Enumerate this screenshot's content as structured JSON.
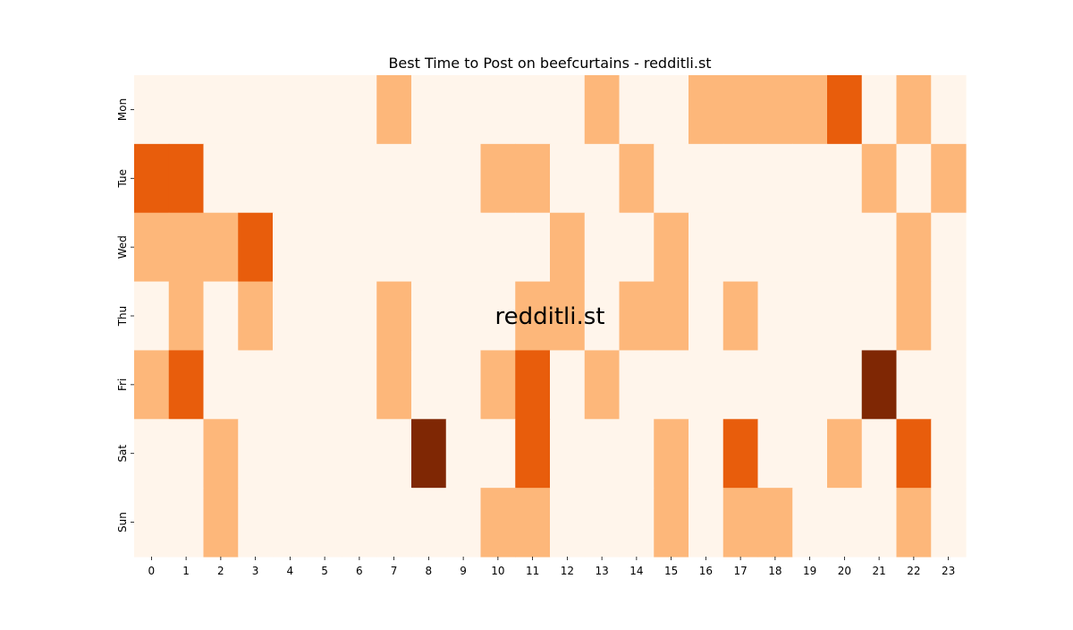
{
  "chart_data": {
    "type": "heatmap",
    "title": "Best Time to Post on beefcurtains - redditli.st",
    "xlabel": "",
    "ylabel": "",
    "x": [
      "0",
      "1",
      "2",
      "3",
      "4",
      "5",
      "6",
      "7",
      "8",
      "9",
      "10",
      "11",
      "12",
      "13",
      "14",
      "15",
      "16",
      "17",
      "18",
      "19",
      "20",
      "21",
      "22",
      "23"
    ],
    "y": [
      "Mon",
      "Tue",
      "Wed",
      "Thu",
      "Fri",
      "Sat",
      "Sun"
    ],
    "values": [
      [
        0,
        0,
        0,
        0,
        0,
        0,
        0,
        1,
        0,
        0,
        0,
        0,
        0,
        1,
        0,
        0,
        1,
        1,
        1,
        1,
        2,
        0,
        1,
        0
      ],
      [
        2,
        2,
        0,
        0,
        0,
        0,
        0,
        0,
        0,
        0,
        1,
        1,
        0,
        0,
        1,
        0,
        0,
        0,
        0,
        0,
        0,
        1,
        0,
        1
      ],
      [
        1,
        1,
        1,
        2,
        0,
        0,
        0,
        0,
        0,
        0,
        0,
        0,
        1,
        0,
        0,
        1,
        0,
        0,
        0,
        0,
        0,
        0,
        1,
        0
      ],
      [
        0,
        1,
        0,
        1,
        0,
        0,
        0,
        1,
        0,
        0,
        0,
        1,
        1,
        0,
        1,
        1,
        0,
        1,
        0,
        0,
        0,
        0,
        1,
        0
      ],
      [
        1,
        2,
        0,
        0,
        0,
        0,
        0,
        1,
        0,
        0,
        1,
        2,
        0,
        1,
        0,
        0,
        0,
        0,
        0,
        0,
        0,
        3,
        0,
        0
      ],
      [
        0,
        0,
        1,
        0,
        0,
        0,
        0,
        0,
        3,
        0,
        0,
        2,
        0,
        0,
        0,
        1,
        0,
        2,
        0,
        0,
        1,
        0,
        2,
        0
      ],
      [
        0,
        0,
        1,
        0,
        0,
        0,
        0,
        0,
        0,
        0,
        1,
        1,
        0,
        0,
        0,
        1,
        0,
        1,
        1,
        0,
        0,
        0,
        1,
        0
      ]
    ],
    "value_range": [
      0,
      3
    ],
    "colormap": [
      "#fff5eb",
      "#fdb77a",
      "#e85d0c",
      "#7f2704"
    ],
    "colorbar": false,
    "grid": false
  },
  "watermark": {
    "text": "redditli.st",
    "color": "#bdbdbd"
  }
}
